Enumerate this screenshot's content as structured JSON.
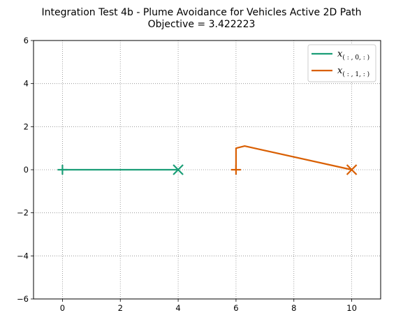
{
  "chart_data": {
    "type": "line",
    "title": "Integration Test 4b - Plume Avoidance for Vehicles Active 2D Path",
    "subtitle": "Objective = 3.422223",
    "xlabel": "",
    "ylabel": "",
    "xlim": [
      -1,
      11
    ],
    "ylim": [
      -6,
      6
    ],
    "xticks": [
      0,
      2,
      4,
      6,
      8,
      10
    ],
    "yticks": [
      -6,
      -4,
      -2,
      0,
      2,
      4,
      6
    ],
    "xtick_labels": [
      "0",
      "2",
      "4",
      "6",
      "8",
      "10"
    ],
    "ytick_labels": [
      "−6",
      "−4",
      "−2",
      "0",
      "2",
      "4",
      "6"
    ],
    "grid": true,
    "legend_position": "top-right",
    "series": [
      {
        "name": "x",
        "name_subscript": "( : , 0, : )",
        "color": "#1b9e77",
        "x": [
          0,
          4
        ],
        "y": [
          0,
          0
        ],
        "start_marker": "plus",
        "end_marker": "x"
      },
      {
        "name": "x",
        "name_subscript": "( : , 1, : )",
        "color": "#d95f02",
        "x": [
          6,
          6,
          6.3,
          10
        ],
        "y": [
          0,
          1.0,
          1.1,
          0
        ],
        "start_marker": "plus",
        "end_marker": "x"
      }
    ]
  }
}
